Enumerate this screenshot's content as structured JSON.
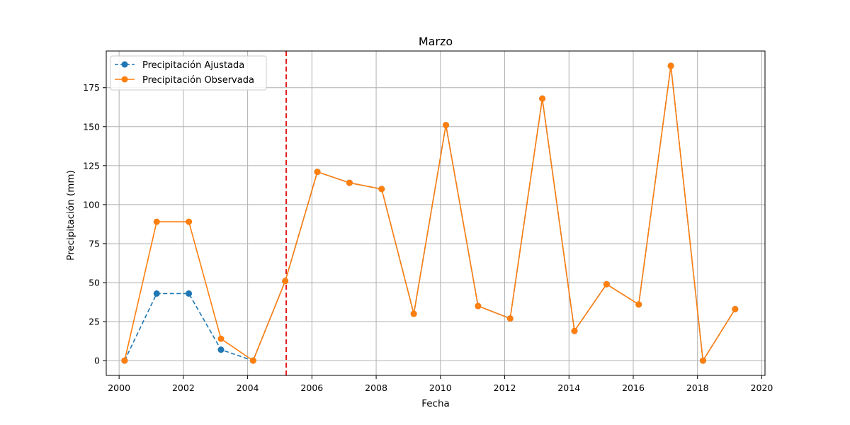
{
  "chart_data": {
    "type": "line",
    "title": "Marzo",
    "xlabel": "Fecha",
    "ylabel": "Precipitación (mm)",
    "xlim": [
      1999.6,
      2020.1
    ],
    "ylim": [
      -9.5,
      198.5
    ],
    "x_ticks": [
      2000,
      2002,
      2004,
      2006,
      2008,
      2010,
      2012,
      2014,
      2016,
      2018,
      2020
    ],
    "x_tick_labels": [
      "2000",
      "2002",
      "2004",
      "2006",
      "2008",
      "2010",
      "2012",
      "2014",
      "2016",
      "2018",
      "2020"
    ],
    "y_ticks": [
      0,
      25,
      50,
      75,
      100,
      125,
      150,
      175
    ],
    "y_tick_labels": [
      "0",
      "25",
      "50",
      "75",
      "100",
      "125",
      "150",
      "175"
    ],
    "grid": true,
    "legend_position": "top-left",
    "vline": {
      "x": 2005.2,
      "color": "#e41a1c",
      "style": "dashed"
    },
    "series": [
      {
        "name": "Precipitación Ajustada",
        "color": "#1f77b4",
        "style": "dashed",
        "marker": "circle",
        "x": [
          2000.17,
          2001.17,
          2002.17,
          2003.17,
          2004.17,
          2005.17,
          2006.17,
          2007.17,
          2008.17,
          2009.17,
          2010.17,
          2011.17,
          2012.17,
          2013.17,
          2014.17,
          2015.17,
          2016.17,
          2017.17,
          2018.17,
          2019.17
        ],
        "values": [
          0,
          43,
          43,
          7,
          0,
          51,
          121,
          114,
          110,
          30,
          151,
          35,
          27,
          168,
          19,
          49,
          36,
          189,
          0,
          33
        ]
      },
      {
        "name": "Precipitación Observada",
        "color": "#ff7f0e",
        "style": "solid",
        "marker": "circle",
        "x": [
          2000.17,
          2001.17,
          2002.17,
          2003.17,
          2004.17,
          2005.17,
          2006.17,
          2007.17,
          2008.17,
          2009.17,
          2010.17,
          2011.17,
          2012.17,
          2013.17,
          2014.17,
          2015.17,
          2016.17,
          2017.17,
          2018.17,
          2019.17
        ],
        "values": [
          0,
          89,
          89,
          14,
          0,
          51,
          121,
          114,
          110,
          30,
          151,
          35,
          27,
          168,
          19,
          49,
          36,
          189,
          0,
          33
        ]
      }
    ]
  }
}
